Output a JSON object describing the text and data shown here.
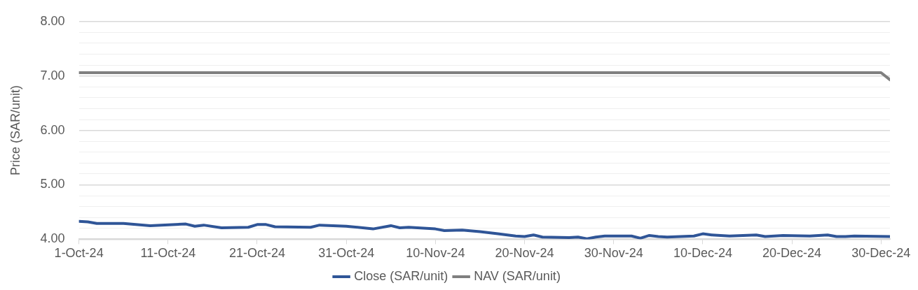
{
  "chart_data": {
    "type": "line",
    "ylabel": "Price (SAR/unit)",
    "xlim": [
      "--10-01",
      "--12-31"
    ],
    "xticks": [
      {
        "value": "--10-01",
        "label": "1-Oct-24"
      },
      {
        "value": "--10-11",
        "label": "11-Oct-24"
      },
      {
        "value": "--10-21",
        "label": "21-Oct-24"
      },
      {
        "value": "--10-31",
        "label": "31-Oct-24"
      },
      {
        "value": "--11-10",
        "label": "10-Nov-24"
      },
      {
        "value": "--11-20",
        "label": "20-Nov-24"
      },
      {
        "value": "--11-30",
        "label": "30-Nov-24"
      },
      {
        "value": "--12-10",
        "label": "10-Dec-24"
      },
      {
        "value": "--12-20",
        "label": "20-Dec-24"
      },
      {
        "value": "--12-30",
        "label": "30-Dec-24"
      }
    ],
    "ylim": [
      4,
      8
    ],
    "yticks": [
      {
        "value": 4,
        "label": "4.00"
      },
      {
        "value": 4.2,
        "label": null
      },
      {
        "value": 4.4,
        "label": null
      },
      {
        "value": 4.6,
        "label": null
      },
      {
        "value": 4.8,
        "label": null
      },
      {
        "value": 5,
        "label": "5.00"
      },
      {
        "value": 5.2,
        "label": null
      },
      {
        "value": 5.4,
        "label": null
      },
      {
        "value": 5.6,
        "label": null
      },
      {
        "value": 5.8,
        "label": null
      },
      {
        "value": 6,
        "label": "6.00"
      },
      {
        "value": 6.2,
        "label": null
      },
      {
        "value": 6.4,
        "label": null
      },
      {
        "value": 6.6,
        "label": null
      },
      {
        "value": 6.8,
        "label": null
      },
      {
        "value": 7,
        "label": "7.00"
      },
      {
        "value": 7.2,
        "label": null
      },
      {
        "value": 7.4,
        "label": null
      },
      {
        "value": 7.6,
        "label": null
      },
      {
        "value": 7.8,
        "label": null
      },
      {
        "value": 8,
        "label": "8.00"
      }
    ],
    "grid": "y",
    "legend": "bottom",
    "marker": "none",
    "line_style": "solid",
    "series": [
      {
        "name": "Close (SAR/unit)",
        "color": "#2f5597",
        "x": [
          "--10-01",
          "--10-02",
          "--10-03",
          "--10-06",
          "--10-09",
          "--10-13",
          "--10-14",
          "--10-15",
          "--10-17",
          "--10-20",
          "--10-21",
          "--10-22",
          "--10-23",
          "--10-27",
          "--10-28",
          "--10-31",
          "--11-03",
          "--11-05",
          "--11-06",
          "--11-07",
          "--11-10",
          "--11-11",
          "--11-13",
          "--11-15",
          "--11-17",
          "--11-19",
          "--11-20",
          "--11-21",
          "--11-22",
          "--11-25",
          "--11-26",
          "--11-27",
          "--11-28",
          "--11-29",
          "--12-02",
          "--12-03",
          "--12-04",
          "--12-05",
          "--12-06",
          "--12-09",
          "--12-10",
          "--12-11",
          "--12-13",
          "--12-16",
          "--12-17",
          "--12-19",
          "--12-22",
          "--12-24",
          "--12-25",
          "--12-26",
          "--12-27",
          "--12-31"
        ],
        "values": [
          4.33,
          4.32,
          4.29,
          4.29,
          4.25,
          4.28,
          4.24,
          4.26,
          4.21,
          4.22,
          4.27,
          4.27,
          4.23,
          4.22,
          4.26,
          4.24,
          4.19,
          4.25,
          4.21,
          4.22,
          4.19,
          4.16,
          4.17,
          4.14,
          4.1,
          4.06,
          4.05,
          4.08,
          4.04,
          4.03,
          4.04,
          4.01,
          4.04,
          4.06,
          4.06,
          4.02,
          4.07,
          4.05,
          4.04,
          4.06,
          4.1,
          4.08,
          4.06,
          4.08,
          4.05,
          4.07,
          4.06,
          4.08,
          4.05,
          4.05,
          4.06,
          4.05
        ]
      },
      {
        "name": "NAV (SAR/unit)",
        "color": "#7f7f7f",
        "x": [
          "--10-01",
          "--12-30",
          "--12-31"
        ],
        "values": [
          7.06,
          7.06,
          6.93
        ]
      }
    ]
  }
}
